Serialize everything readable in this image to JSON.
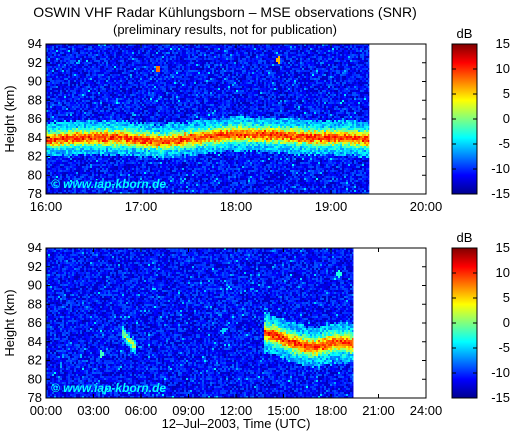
{
  "chart_data": [
    {
      "type": "heatmap",
      "title": "OSWIN VHF Radar Kühlungsborn – MSE observations (SNR)",
      "subtitle": "(preliminary results, not for publication)",
      "xlabel": "",
      "ylabel": "Height (km)",
      "x_unit": "hours UTC",
      "x_ticks": [
        "16:00",
        "17:00",
        "18:00",
        "19:00",
        "20:00"
      ],
      "x_tick_values": [
        16,
        17,
        18,
        19,
        20
      ],
      "xlim": [
        16,
        20
      ],
      "ylim": [
        78,
        94
      ],
      "y_ticks": [
        78,
        80,
        82,
        84,
        86,
        88,
        90,
        92,
        94
      ],
      "data_end_x": 19.4,
      "grid": false,
      "watermark": "© www.iap-kborn.de",
      "colorbar": {
        "label": "dB",
        "range": [
          -15,
          15
        ],
        "ticks": [
          15,
          10,
          5,
          0,
          -5,
          -10,
          -15
        ],
        "colormap": "jet"
      },
      "layers": [
        {
          "name": "MSE layer",
          "x": [
            16.0,
            16.4,
            16.8,
            17.2,
            17.6,
            18.0,
            18.4,
            18.8,
            19.2,
            19.4
          ],
          "center_height": [
            83.8,
            84.0,
            84.0,
            83.6,
            84.0,
            84.4,
            84.3,
            84.0,
            84.0,
            83.8
          ],
          "thickness_km": 1.4,
          "peak_snr_db": 10
        }
      ],
      "spots": [
        {
          "x": 17.18,
          "y": 91.4,
          "snr_db": 8
        },
        {
          "x": 18.45,
          "y": 92.3,
          "snr_db": 6
        }
      ]
    },
    {
      "type": "heatmap",
      "xlabel": "12–Jul–2003, Time (UTC)",
      "ylabel": "Height (km)",
      "x_unit": "hours UTC",
      "x_ticks": [
        "00:00",
        "03:00",
        "06:00",
        "09:00",
        "12:00",
        "15:00",
        "18:00",
        "21:00",
        "24:00"
      ],
      "x_tick_values": [
        0,
        3,
        6,
        9,
        12,
        15,
        18,
        21,
        24
      ],
      "xlim": [
        0,
        24
      ],
      "ylim": [
        78,
        94
      ],
      "y_ticks": [
        78,
        80,
        82,
        84,
        86,
        88,
        90,
        92,
        94
      ],
      "data_end_x": 19.4,
      "grid": false,
      "watermark": "© www.iap-kborn.de",
      "colorbar": {
        "label": "dB",
        "range": [
          -15,
          15
        ],
        "ticks": [
          15,
          10,
          5,
          0,
          -5,
          -10,
          -15
        ],
        "colormap": "jet"
      },
      "layers": [
        {
          "name": "MSE layer",
          "x": [
            13.8,
            14.6,
            15.4,
            16.2,
            17.0,
            17.8,
            18.6,
            19.4
          ],
          "center_height": [
            85.0,
            84.6,
            84.0,
            83.6,
            83.4,
            83.8,
            84.0,
            83.8
          ],
          "thickness_km": 1.6,
          "peak_snr_db": 10
        },
        {
          "name": "MSE patch",
          "x": [
            4.8,
            5.1,
            5.4,
            5.7
          ],
          "center_height": [
            85.0,
            84.4,
            83.8,
            83.4
          ],
          "thickness_km": 0.6,
          "peak_snr_db": 2
        }
      ],
      "spots": [
        {
          "x": 3.5,
          "y": 82.7,
          "snr_db": -2
        },
        {
          "x": 18.5,
          "y": 91.2,
          "snr_db": -3
        },
        {
          "x": 11.2,
          "y": 85.2,
          "snr_db": -5
        }
      ]
    }
  ]
}
